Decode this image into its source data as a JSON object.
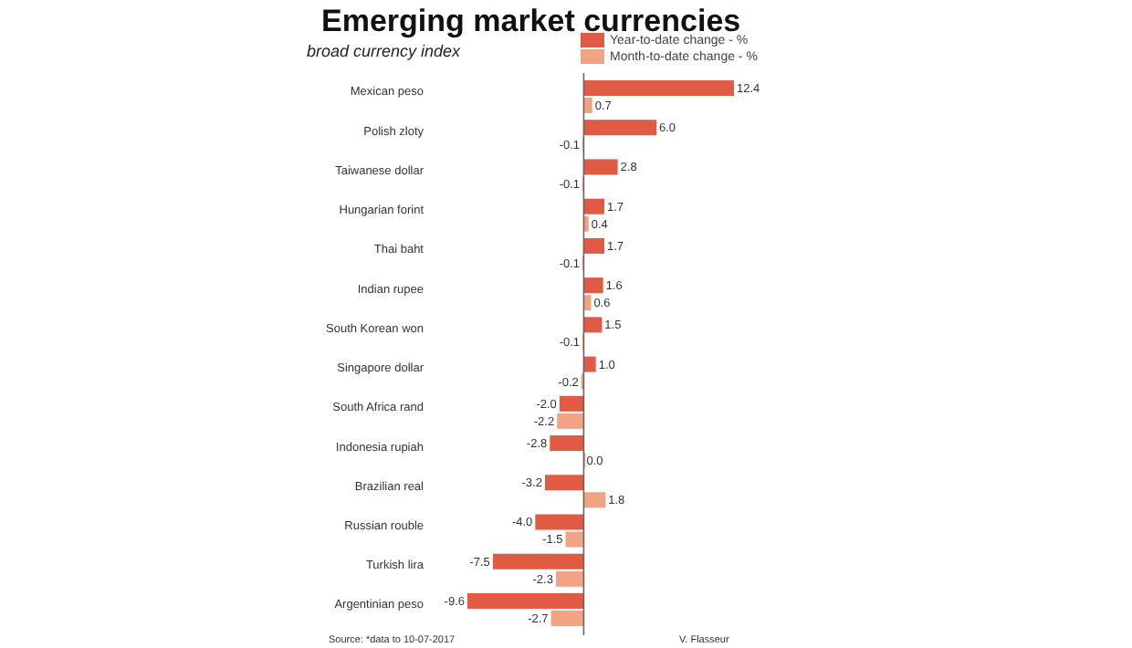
{
  "chart_data": {
    "type": "bar",
    "orientation": "horizontal",
    "title": "Emerging market currencies",
    "subtitle": "broad currency index",
    "categories": [
      "Mexican peso",
      "Polish zloty",
      "Taiwanese dollar",
      "Hungarian forint",
      "Thai baht",
      "Indian rupee",
      "South Korean won",
      "Singapore dollar",
      "South Africa rand",
      "Indonesia rupiah",
      "Brazilian real",
      "Russian rouble",
      "Turkish lira",
      "Argentinian peso"
    ],
    "series": [
      {
        "name": "Year-to-date change - %",
        "color": "#e05a44",
        "values": [
          12.4,
          6.0,
          2.8,
          1.7,
          1.7,
          1.6,
          1.5,
          1.0,
          -2.0,
          -2.8,
          -3.2,
          -4.0,
          -7.5,
          -9.6
        ],
        "value_labels": [
          "12.4",
          "6.0",
          "2.8",
          "1.7",
          "1.7",
          "1.6",
          "1.5",
          "1.0",
          "-2.0",
          "-2.8",
          "-3.2",
          "-4.0",
          "-7.5",
          "-9.6"
        ]
      },
      {
        "name": "Month-to-date change - %",
        "color": "#f2a383",
        "values": [
          0.7,
          -0.1,
          -0.1,
          0.4,
          -0.1,
          0.6,
          -0.1,
          -0.2,
          -2.2,
          0.0,
          1.8,
          -1.5,
          -2.3,
          -2.7
        ],
        "value_labels": [
          "0.7",
          "-0.1",
          "-0.1",
          "0.4",
          "-0.1",
          "0.6",
          "-0.1",
          "-0.2",
          "-2.2",
          "0.0",
          "1.8",
          "-1.5",
          "-2.3",
          "-2.7"
        ]
      }
    ],
    "legend": "top",
    "annotations": [
      "Source: *data to 10-07-2017",
      "V. Flasseur"
    ]
  }
}
